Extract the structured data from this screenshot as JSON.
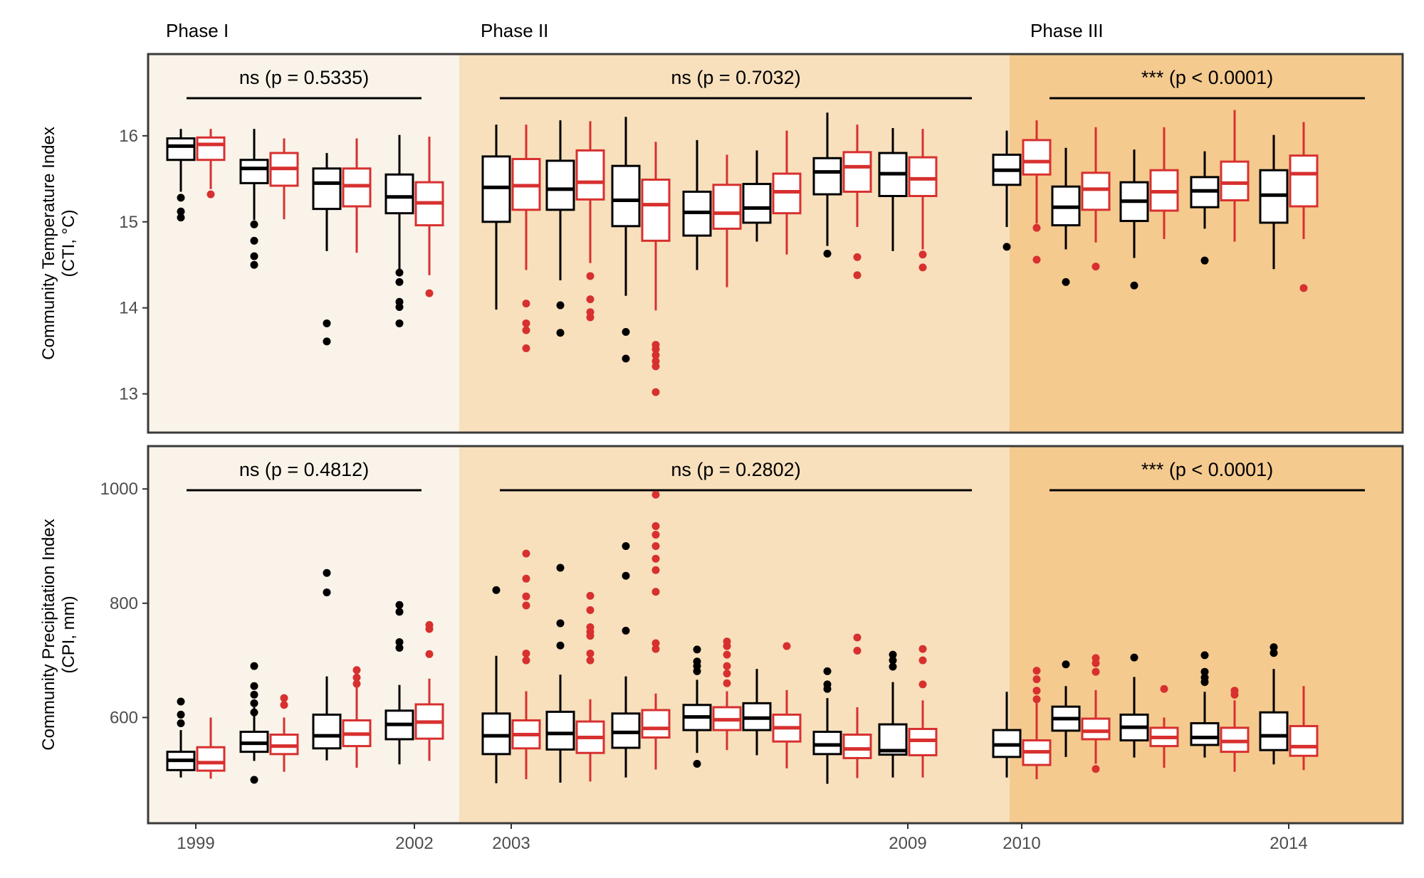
{
  "figure": {
    "phase_labels": [
      "Phase I",
      "Phase II",
      "Phase III"
    ]
  },
  "colors": {
    "black_series": "#000000",
    "red_series": "#d7302f",
    "phase1_bg": "#f9f3e9",
    "phase2_bg": "#f8e0bd",
    "phase3_bg": "#f4ca8f",
    "frame": "#3a3a3a"
  },
  "chart_data": [
    {
      "type": "box",
      "panel": "top",
      "ylabel_line1": "Community Temperature Index",
      "ylabel_line2": "(CTI, °C)",
      "ylim": [
        12.55,
        16.95
      ],
      "yticks": [
        13,
        14,
        15,
        16
      ],
      "x_tick_labels": [
        "1999",
        "2002",
        "2003",
        "2009",
        "2010",
        "2014"
      ],
      "phase_spans": [
        [
          "1999",
          "2002"
        ],
        [
          "2003",
          "2009"
        ],
        [
          "2010",
          "2014"
        ]
      ],
      "annotations": [
        {
          "label": "ns (p = 0.5335)",
          "from": "1999",
          "to": "2002"
        },
        {
          "label": "ns (p = 0.7032)",
          "from": "2003",
          "to": "2009"
        },
        {
          "label": "*** (p < 0.0001)",
          "from": "2010",
          "to": "2014"
        }
      ],
      "categories": [
        "1999",
        "2000",
        "2001",
        "2002",
        "2003",
        "2004",
        "2005",
        "2006",
        "2007",
        "2008",
        "2009",
        "2010",
        "2011",
        "2012",
        "2013",
        "2014"
      ],
      "series": [
        {
          "color_key": "black",
          "boxes": [
            {
              "min": 15.35,
              "q1": 15.72,
              "median": 15.88,
              "q3": 15.97,
              "max": 16.08,
              "outliers": [
                15.28,
                15.12,
                15.05
              ]
            },
            {
              "min": 15.02,
              "q1": 15.45,
              "median": 15.62,
              "q3": 15.72,
              "max": 16.08,
              "outliers": [
                14.97,
                14.78,
                14.6,
                14.5
              ]
            },
            {
              "min": 14.66,
              "q1": 15.15,
              "median": 15.45,
              "q3": 15.62,
              "max": 15.8,
              "outliers": [
                13.82,
                13.61
              ]
            },
            {
              "min": 14.45,
              "q1": 15.1,
              "median": 15.29,
              "q3": 15.55,
              "max": 16.01,
              "outliers": [
                14.41,
                14.3,
                14.07,
                14.01,
                13.82
              ]
            },
            {
              "min": 13.98,
              "q1": 15.0,
              "median": 15.4,
              "q3": 15.76,
              "max": 16.13,
              "outliers": []
            },
            {
              "min": 14.32,
              "q1": 15.14,
              "median": 15.38,
              "q3": 15.71,
              "max": 16.18,
              "outliers": [
                14.03,
                13.71
              ]
            },
            {
              "min": 14.14,
              "q1": 14.95,
              "median": 15.25,
              "q3": 15.65,
              "max": 16.22,
              "outliers": [
                13.72,
                13.41
              ]
            },
            {
              "min": 14.44,
              "q1": 14.84,
              "median": 15.11,
              "q3": 15.35,
              "max": 15.95,
              "outliers": []
            },
            {
              "min": 14.77,
              "q1": 14.99,
              "median": 15.16,
              "q3": 15.44,
              "max": 15.83,
              "outliers": []
            },
            {
              "min": 14.72,
              "q1": 15.32,
              "median": 15.58,
              "q3": 15.74,
              "max": 16.27,
              "outliers": [
                14.63
              ]
            },
            {
              "min": 14.66,
              "q1": 15.3,
              "median": 15.56,
              "q3": 15.8,
              "max": 16.09,
              "outliers": []
            },
            {
              "min": 14.94,
              "q1": 15.43,
              "median": 15.6,
              "q3": 15.78,
              "max": 16.06,
              "outliers": [
                14.71
              ]
            },
            {
              "min": 14.68,
              "q1": 14.96,
              "median": 15.17,
              "q3": 15.41,
              "max": 15.86,
              "outliers": [
                14.3
              ]
            },
            {
              "min": 14.58,
              "q1": 15.01,
              "median": 15.24,
              "q3": 15.46,
              "max": 15.84,
              "outliers": [
                14.26
              ]
            },
            {
              "min": 14.92,
              "q1": 15.17,
              "median": 15.36,
              "q3": 15.52,
              "max": 15.82,
              "outliers": [
                14.55
              ]
            },
            {
              "min": 14.45,
              "q1": 14.99,
              "median": 15.31,
              "q3": 15.6,
              "max": 16.01,
              "outliers": []
            }
          ]
        },
        {
          "color_key": "red",
          "boxes": [
            {
              "min": 15.38,
              "q1": 15.72,
              "median": 15.9,
              "q3": 15.98,
              "max": 16.08,
              "outliers": [
                15.32
              ]
            },
            {
              "min": 15.03,
              "q1": 15.42,
              "median": 15.62,
              "q3": 15.8,
              "max": 15.97,
              "outliers": []
            },
            {
              "min": 14.64,
              "q1": 15.18,
              "median": 15.42,
              "q3": 15.62,
              "max": 15.97,
              "outliers": []
            },
            {
              "min": 14.38,
              "q1": 14.96,
              "median": 15.22,
              "q3": 15.46,
              "max": 15.99,
              "outliers": [
                14.17
              ]
            },
            {
              "min": 14.44,
              "q1": 15.14,
              "median": 15.42,
              "q3": 15.73,
              "max": 16.13,
              "outliers": [
                14.05,
                13.82,
                13.74,
                13.53
              ]
            },
            {
              "min": 14.52,
              "q1": 15.26,
              "median": 15.46,
              "q3": 15.83,
              "max": 16.17,
              "outliers": [
                14.37,
                14.1,
                13.95,
                13.89
              ]
            },
            {
              "min": 13.97,
              "q1": 14.78,
              "median": 15.2,
              "q3": 15.49,
              "max": 15.93,
              "outliers": [
                13.57,
                13.52,
                13.45,
                13.38,
                13.32,
                13.02
              ]
            },
            {
              "min": 14.24,
              "q1": 14.92,
              "median": 15.1,
              "q3": 15.43,
              "max": 15.78,
              "outliers": []
            },
            {
              "min": 14.62,
              "q1": 15.1,
              "median": 15.35,
              "q3": 15.56,
              "max": 16.06,
              "outliers": []
            },
            {
              "min": 14.94,
              "q1": 15.35,
              "median": 15.64,
              "q3": 15.81,
              "max": 16.13,
              "outliers": [
                14.59,
                14.38
              ]
            },
            {
              "min": 14.68,
              "q1": 15.3,
              "median": 15.5,
              "q3": 15.75,
              "max": 16.08,
              "outliers": [
                14.62,
                14.47
              ]
            },
            {
              "min": 14.98,
              "q1": 15.55,
              "median": 15.7,
              "q3": 15.95,
              "max": 16.18,
              "outliers": [
                14.93,
                14.56
              ]
            },
            {
              "min": 14.76,
              "q1": 15.14,
              "median": 15.38,
              "q3": 15.57,
              "max": 16.1,
              "outliers": [
                14.48
              ]
            },
            {
              "min": 14.8,
              "q1": 15.13,
              "median": 15.35,
              "q3": 15.6,
              "max": 16.1,
              "outliers": []
            },
            {
              "min": 14.77,
              "q1": 15.25,
              "median": 15.45,
              "q3": 15.7,
              "max": 16.3,
              "outliers": []
            },
            {
              "min": 14.8,
              "q1": 15.18,
              "median": 15.56,
              "q3": 15.77,
              "max": 16.16,
              "outliers": [
                14.23
              ]
            }
          ]
        }
      ]
    },
    {
      "type": "box",
      "panel": "bottom",
      "ylabel_line1": "Community Precipitation Index",
      "ylabel_line2": "(CPI, mm)",
      "ylim": [
        415,
        1075
      ],
      "yticks": [
        600,
        800,
        1000
      ],
      "x_tick_labels": [
        "1999",
        "2002",
        "2003",
        "2009",
        "2010",
        "2014"
      ],
      "phase_spans": [
        [
          "1999",
          "2002"
        ],
        [
          "2003",
          "2009"
        ],
        [
          "2010",
          "2014"
        ]
      ],
      "annotations": [
        {
          "label": "ns (p = 0.4812)",
          "from": "1999",
          "to": "2002"
        },
        {
          "label": "ns (p = 0.2802)",
          "from": "2003",
          "to": "2009"
        },
        {
          "label": "*** (p < 0.0001)",
          "from": "2010",
          "to": "2014"
        }
      ],
      "categories": [
        "1999",
        "2000",
        "2001",
        "2002",
        "2003",
        "2004",
        "2005",
        "2006",
        "2007",
        "2008",
        "2009",
        "2010",
        "2011",
        "2012",
        "2013",
        "2014"
      ],
      "series": [
        {
          "color_key": "black",
          "boxes": [
            {
              "min": 495,
              "q1": 508,
              "median": 525,
              "q3": 540,
              "max": 578,
              "outliers": [
                628,
                605,
                590
              ]
            },
            {
              "min": 524,
              "q1": 540,
              "median": 555,
              "q3": 575,
              "max": 618,
              "outliers": [
                690,
                655,
                640,
                625,
                609,
                491
              ]
            },
            {
              "min": 525,
              "q1": 546,
              "median": 568,
              "q3": 605,
              "max": 672,
              "outliers": [
                853,
                819
              ]
            },
            {
              "min": 518,
              "q1": 562,
              "median": 588,
              "q3": 612,
              "max": 657,
              "outliers": [
                797,
                785,
                732,
                722
              ]
            },
            {
              "min": 485,
              "q1": 536,
              "median": 568,
              "q3": 607,
              "max": 708,
              "outliers": [
                823
              ]
            },
            {
              "min": 486,
              "q1": 544,
              "median": 572,
              "q3": 610,
              "max": 675,
              "outliers": [
                862,
                765,
                726
              ]
            },
            {
              "min": 495,
              "q1": 547,
              "median": 574,
              "q3": 607,
              "max": 672,
              "outliers": [
                900,
                848,
                752
              ]
            },
            {
              "min": 538,
              "q1": 578,
              "median": 601,
              "q3": 622,
              "max": 666,
              "outliers": [
                719,
                698,
                690,
                681,
                519
              ]
            },
            {
              "min": 534,
              "q1": 578,
              "median": 599,
              "q3": 625,
              "max": 685,
              "outliers": []
            },
            {
              "min": 484,
              "q1": 536,
              "median": 552,
              "q3": 575,
              "max": 634,
              "outliers": [
                681,
                658,
                650
              ]
            },
            {
              "min": 495,
              "q1": 535,
              "median": 542,
              "q3": 588,
              "max": 662,
              "outliers": [
                710,
                700,
                689
              ]
            },
            {
              "min": 495,
              "q1": 531,
              "median": 552,
              "q3": 578,
              "max": 645,
              "outliers": []
            },
            {
              "min": 531,
              "q1": 577,
              "median": 598,
              "q3": 619,
              "max": 655,
              "outliers": [
                693
              ]
            },
            {
              "min": 530,
              "q1": 560,
              "median": 583,
              "q3": 605,
              "max": 671,
              "outliers": [
                705
              ]
            },
            {
              "min": 530,
              "q1": 552,
              "median": 565,
              "q3": 590,
              "max": 645,
              "outliers": [
                709,
                680,
                670,
                662
              ]
            },
            {
              "min": 518,
              "q1": 543,
              "median": 568,
              "q3": 609,
              "max": 685,
              "outliers": [
                723,
                713
              ]
            }
          ]
        },
        {
          "color_key": "red",
          "boxes": [
            {
              "min": 493,
              "q1": 507,
              "median": 521,
              "q3": 548,
              "max": 600,
              "outliers": []
            },
            {
              "min": 505,
              "q1": 536,
              "median": 550,
              "q3": 570,
              "max": 600,
              "outliers": [
                634,
                622
              ]
            },
            {
              "min": 512,
              "q1": 550,
              "median": 571,
              "q3": 595,
              "max": 655,
              "outliers": [
                683,
                670,
                659
              ]
            },
            {
              "min": 524,
              "q1": 563,
              "median": 592,
              "q3": 623,
              "max": 668,
              "outliers": [
                762,
                755,
                711
              ]
            },
            {
              "min": 492,
              "q1": 546,
              "median": 570,
              "q3": 595,
              "max": 646,
              "outliers": [
                887,
                843,
                812,
                796,
                712,
                700
              ]
            },
            {
              "min": 488,
              "q1": 538,
              "median": 565,
              "q3": 593,
              "max": 632,
              "outliers": [
                813,
                788,
                758,
                750,
                743,
                712,
                700
              ]
            },
            {
              "min": 509,
              "q1": 565,
              "median": 581,
              "q3": 613,
              "max": 642,
              "outliers": [
                990,
                935,
                920,
                900,
                878,
                858,
                820,
                730,
                720
              ]
            },
            {
              "min": 543,
              "q1": 578,
              "median": 596,
              "q3": 618,
              "max": 646,
              "outliers": [
                733,
                725,
                710,
                690,
                677,
                660
              ]
            },
            {
              "min": 511,
              "q1": 558,
              "median": 582,
              "q3": 605,
              "max": 648,
              "outliers": [
                725
              ]
            },
            {
              "min": 494,
              "q1": 529,
              "median": 545,
              "q3": 570,
              "max": 618,
              "outliers": [
                740,
                717
              ]
            },
            {
              "min": 495,
              "q1": 534,
              "median": 560,
              "q3": 580,
              "max": 630,
              "outliers": [
                720,
                700,
                658
              ]
            },
            {
              "min": 492,
              "q1": 517,
              "median": 540,
              "q3": 560,
              "max": 638,
              "outliers": [
                682,
                667,
                647,
                632
              ]
            },
            {
              "min": 519,
              "q1": 562,
              "median": 576,
              "q3": 598,
              "max": 648,
              "outliers": [
                704,
                695,
                680,
                510
              ]
            },
            {
              "min": 512,
              "q1": 550,
              "median": 565,
              "q3": 582,
              "max": 600,
              "outliers": [
                650
              ]
            },
            {
              "min": 505,
              "q1": 540,
              "median": 558,
              "q3": 582,
              "max": 630,
              "outliers": [
                647,
                640
              ]
            },
            {
              "min": 508,
              "q1": 533,
              "median": 549,
              "q3": 585,
              "max": 655,
              "outliers": []
            }
          ]
        }
      ]
    }
  ]
}
